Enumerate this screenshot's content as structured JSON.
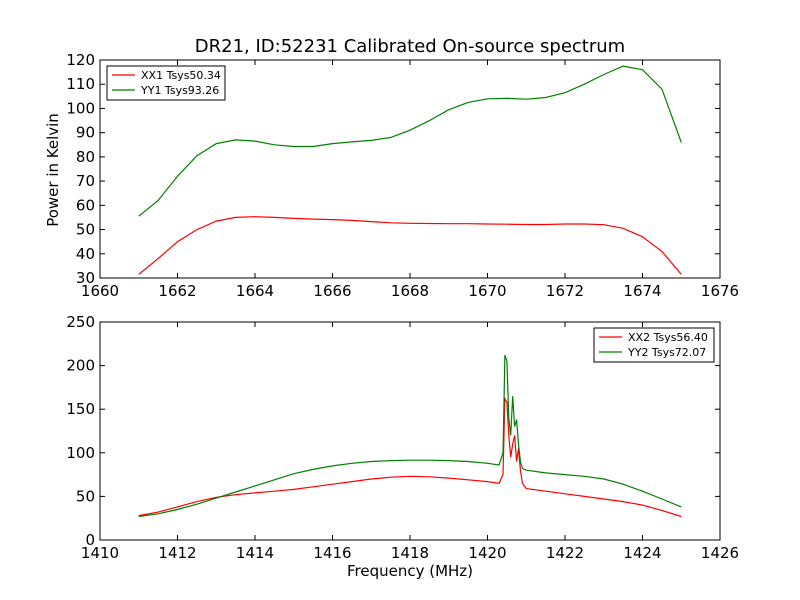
{
  "chart_data": [
    {
      "type": "line",
      "title": "DR21, ID:52231 Calibrated On-source spectrum",
      "xlabel": "",
      "ylabel": "Power in Kelvin",
      "xlim": [
        1660,
        1676
      ],
      "ylim": [
        30,
        120
      ],
      "xticks": [
        1660,
        1662,
        1664,
        1666,
        1668,
        1670,
        1672,
        1674,
        1676
      ],
      "yticks": [
        30,
        40,
        50,
        60,
        70,
        80,
        90,
        100,
        110,
        120
      ],
      "legend_position": "top-left",
      "grid": false,
      "series": [
        {
          "name": "XX1 Tsys50.34",
          "color": "#ff0000",
          "x": [
            1661.0,
            1661.5,
            1662.0,
            1662.5,
            1663.0,
            1663.5,
            1664.0,
            1664.5,
            1665.0,
            1665.5,
            1666.0,
            1666.5,
            1667.0,
            1667.5,
            1668.0,
            1668.5,
            1669.0,
            1669.5,
            1670.0,
            1670.5,
            1671.0,
            1671.5,
            1672.0,
            1672.5,
            1673.0,
            1673.5,
            1674.0,
            1674.5,
            1675.0
          ],
          "y": [
            31.5,
            38,
            45,
            50,
            53.5,
            55,
            55.3,
            55,
            54.6,
            54.3,
            54.1,
            53.8,
            53.3,
            52.8,
            52.6,
            52.5,
            52.4,
            52.4,
            52.3,
            52.2,
            52.1,
            52.1,
            52.3,
            52.3,
            52.0,
            50.5,
            47,
            41,
            31.5
          ]
        },
        {
          "name": "YY1 Tsys93.26",
          "color": "#008000",
          "x": [
            1661.0,
            1661.5,
            1662.0,
            1662.5,
            1663.0,
            1663.5,
            1664.0,
            1664.5,
            1665.0,
            1665.5,
            1666.0,
            1666.5,
            1667.0,
            1667.5,
            1668.0,
            1668.5,
            1669.0,
            1669.5,
            1670.0,
            1670.5,
            1671.0,
            1671.5,
            1672.0,
            1672.5,
            1673.0,
            1673.5,
            1674.0,
            1674.5,
            1675.0
          ],
          "y": [
            55.5,
            62,
            72,
            80.5,
            85.5,
            87,
            86.5,
            85,
            84.3,
            84.3,
            85.5,
            86.2,
            86.8,
            88,
            91,
            95,
            99.5,
            102.5,
            104,
            104.2,
            103.8,
            104.5,
            106.5,
            110,
            114,
            117.5,
            116,
            108,
            86
          ]
        }
      ]
    },
    {
      "type": "line",
      "title": "",
      "xlabel": "Frequency (MHz)",
      "ylabel": "",
      "xlim": [
        1410,
        1426
      ],
      "ylim": [
        0,
        250
      ],
      "xticks": [
        1410,
        1412,
        1414,
        1416,
        1418,
        1420,
        1422,
        1424,
        1426
      ],
      "yticks": [
        0,
        50,
        100,
        150,
        200,
        250
      ],
      "legend_position": "top-right",
      "grid": false,
      "series": [
        {
          "name": "XX2 Tsys56.40",
          "color": "#ff0000",
          "x": [
            1411.0,
            1411.5,
            1412.0,
            1412.5,
            1413.0,
            1413.5,
            1414.0,
            1414.5,
            1415.0,
            1415.5,
            1416.0,
            1416.5,
            1417.0,
            1417.5,
            1418.0,
            1418.5,
            1419.0,
            1419.5,
            1420.0,
            1420.3,
            1420.4,
            1420.45,
            1420.5,
            1420.55,
            1420.6,
            1420.65,
            1420.7,
            1420.75,
            1420.8,
            1420.85,
            1420.9,
            1421.0,
            1421.5,
            1422.0,
            1422.5,
            1423.0,
            1423.5,
            1424.0,
            1424.5,
            1425.0
          ],
          "y": [
            28,
            32,
            38,
            44,
            49,
            52,
            54,
            56,
            58,
            61,
            64,
            67,
            70,
            72,
            73,
            72.5,
            71,
            69,
            67,
            65,
            75,
            162,
            158,
            120,
            95,
            110,
            120,
            90,
            105,
            80,
            65,
            59,
            56,
            53,
            50,
            47,
            44,
            40,
            34,
            27
          ]
        },
        {
          "name": "YY2 Tsys72.07",
          "color": "#008000",
          "x": [
            1411.0,
            1411.5,
            1412.0,
            1412.5,
            1413.0,
            1413.5,
            1414.0,
            1414.5,
            1415.0,
            1415.5,
            1416.0,
            1416.5,
            1417.0,
            1417.5,
            1418.0,
            1418.5,
            1419.0,
            1419.5,
            1420.0,
            1420.3,
            1420.4,
            1420.45,
            1420.5,
            1420.55,
            1420.6,
            1420.65,
            1420.7,
            1420.75,
            1420.8,
            1420.85,
            1420.9,
            1421.0,
            1421.5,
            1422.0,
            1422.5,
            1423.0,
            1423.5,
            1424.0,
            1424.5,
            1425.0
          ],
          "y": [
            27,
            30,
            35,
            41,
            48,
            55,
            62,
            69,
            76,
            81,
            85,
            88,
            90,
            91,
            91.5,
            91.5,
            91,
            90,
            88,
            86,
            100,
            212,
            205,
            140,
            120,
            165,
            130,
            138,
            110,
            90,
            82,
            80,
            77,
            75,
            73,
            70,
            64,
            56,
            47,
            38
          ]
        }
      ]
    }
  ]
}
